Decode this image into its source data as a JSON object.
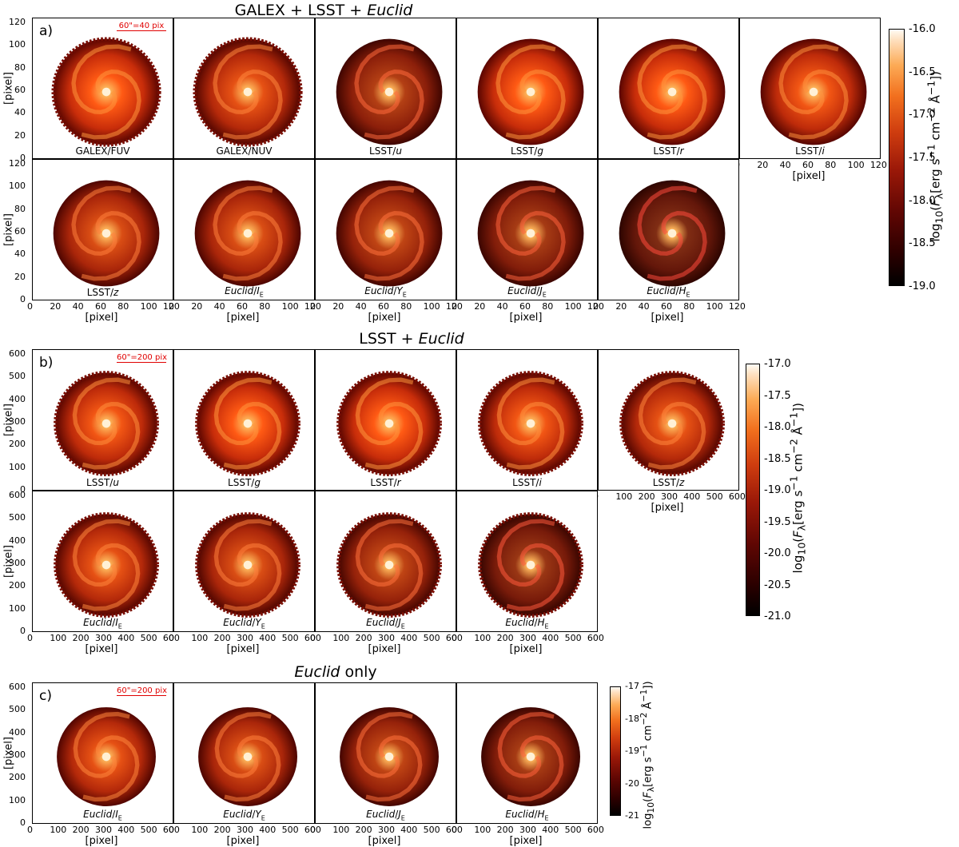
{
  "colors": {
    "colormap": [
      "#000000",
      "#5e0603",
      "#cf3d0f",
      "#fcaa55",
      "#fffbf5"
    ],
    "scale_bar": "#e00000"
  },
  "chart_data": [
    {
      "type": "image-grid",
      "panel_label": "a)",
      "title_parts": [
        "GALEX + LSST + ",
        "Euclid"
      ],
      "scale_bar": "60\"=40 pix",
      "axis": {
        "xlabel": "[pixel]",
        "ylabel": "[pixel]",
        "xlim": [
          0,
          125
        ],
        "ylim": [
          0,
          125
        ],
        "xticks": [
          "0",
          "20",
          "40",
          "60",
          "80",
          "100",
          "120"
        ],
        "yticks": [
          "0",
          "20",
          "40",
          "60",
          "80",
          "100",
          "120"
        ]
      },
      "colorbar": {
        "label": "log10(Fλ[erg s−1 cm−2 Å−1])",
        "range": [
          -19.0,
          -16.0
        ],
        "ticks": [
          "-16.0",
          "-16.5",
          "-17.0",
          "-17.5",
          "-18.0",
          "-18.5",
          "-19.0"
        ]
      },
      "filters": [
        {
          "name": "GALEX/FUV"
        },
        {
          "name": "GALEX/NUV"
        },
        {
          "name": "LSST/u"
        },
        {
          "name": "LSST/g"
        },
        {
          "name": "LSST/r"
        },
        {
          "name": "LSST/i"
        },
        {
          "name": "LSST/z"
        },
        {
          "name": "Euclid/IE"
        },
        {
          "name": "Euclid/YE"
        },
        {
          "name": "Euclid/JE"
        },
        {
          "name": "Euclid/HE"
        }
      ]
    },
    {
      "type": "image-grid",
      "panel_label": "b)",
      "title_parts": [
        "LSST + ",
        "Euclid"
      ],
      "scale_bar": "60\"=200 pix",
      "axis": {
        "xlabel": "[pixel]",
        "ylabel": "[pixel]",
        "xlim": [
          0,
          650
        ],
        "ylim": [
          0,
          650
        ],
        "xticks": [
          "0",
          "100",
          "200",
          "300",
          "400",
          "500",
          "600"
        ],
        "yticks": [
          "0",
          "100",
          "200",
          "300",
          "400",
          "500",
          "600"
        ]
      },
      "colorbar": {
        "label": "log10(Fλ[erg s−1 cm−2 Å−1])",
        "range": [
          -21.0,
          -17.0
        ],
        "ticks": [
          "-17.0",
          "-17.5",
          "-18.0",
          "-18.5",
          "-19.0",
          "-19.5",
          "-20.0",
          "-20.5",
          "-21.0"
        ]
      },
      "filters": [
        {
          "name": "LSST/u"
        },
        {
          "name": "LSST/g"
        },
        {
          "name": "LSST/r"
        },
        {
          "name": "LSST/i"
        },
        {
          "name": "LSST/z"
        },
        {
          "name": "Euclid/IE"
        },
        {
          "name": "Euclid/YE"
        },
        {
          "name": "Euclid/JE"
        },
        {
          "name": "Euclid/HE"
        }
      ]
    },
    {
      "type": "image-grid",
      "panel_label": "c)",
      "title_parts": [
        "",
        "Euclid",
        " only"
      ],
      "scale_bar": "60\"=200 pix",
      "axis": {
        "xlabel": "[pixel]",
        "ylabel": "[pixel]",
        "xlim": [
          0,
          650
        ],
        "ylim": [
          0,
          650
        ],
        "xticks": [
          "0",
          "100",
          "200",
          "300",
          "400",
          "500",
          "600"
        ],
        "yticks": [
          "0",
          "100",
          "200",
          "300",
          "400",
          "500",
          "600"
        ]
      },
      "colorbar": {
        "label": "log10(Fλ[erg s−1 cm−2 Å−1])",
        "range": [
          -21,
          -17
        ],
        "ticks": [
          "-17",
          "-18",
          "-19",
          "-20",
          "-21"
        ]
      },
      "filters": [
        {
          "name": "Euclid/IE"
        },
        {
          "name": "Euclid/YE"
        },
        {
          "name": "Euclid/JE"
        },
        {
          "name": "Euclid/HE"
        }
      ]
    }
  ]
}
